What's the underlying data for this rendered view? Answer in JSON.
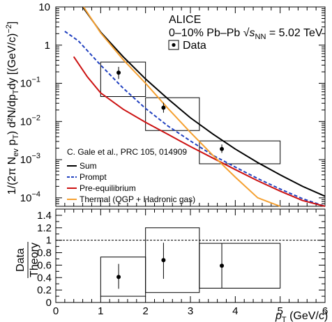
{
  "chart_data": [
    {
      "type": "line",
      "title": "ALICE",
      "subtitle_prefix": "0–10% Pb–Pb ",
      "subtitle_sqrt": "s",
      "subtitle_sub": "NN",
      "subtitle_suffix": " = 5.02 TeV",
      "reference": "C. Gale et al., PRC 105, 014909",
      "xlabel": "p",
      "xlabel_sub": "T",
      "xlabel_unit": " (GeV/c)",
      "ylabel_main": "[(GeV/c)",
      "ylabel_exp": "−2",
      "ylabel_close": "]",
      "xlim": [
        0,
        6
      ],
      "ylim": [
        6e-05,
        10
      ],
      "yscale": "log",
      "x_ticks": [
        0,
        1,
        2,
        3,
        4,
        5,
        6
      ],
      "y_ticks": [
        {
          "value": 10,
          "label": "10",
          "exp": ""
        },
        {
          "value": 1,
          "label": "1",
          "exp": ""
        },
        {
          "value": 0.1,
          "label": "10",
          "exp": "−1"
        },
        {
          "value": 0.01,
          "label": "10",
          "exp": "−2"
        },
        {
          "value": 0.001,
          "label": "10",
          "exp": "−3"
        },
        {
          "value": 0.0001,
          "label": "10",
          "exp": "−4"
        }
      ],
      "legend": {
        "data_label": "Data",
        "placement": "top-right"
      },
      "data_points": [
        {
          "x": 1.4,
          "y": 0.19,
          "xerr": [
            1.0,
            2.0
          ],
          "ylow": 0.13,
          "yhigh": 0.27,
          "syslow": 0.045,
          "syshigh": 0.36
        },
        {
          "x": 2.4,
          "y": 0.023,
          "xerr": [
            2.0,
            3.2
          ],
          "ylow": 0.017,
          "yhigh": 0.031,
          "syslow": 0.0058,
          "syshigh": 0.042
        },
        {
          "x": 3.7,
          "y": 0.0019,
          "xerr": [
            3.2,
            5.0
          ],
          "ylow": 0.0015,
          "yhigh": 0.0025,
          "syslow": 0.00078,
          "syshigh": 0.0031
        }
      ],
      "series": [
        {
          "name": "Sum",
          "color": "#000000",
          "dash": "solid",
          "x": [
            0.6,
            1.0,
            1.5,
            2.0,
            2.5,
            3.0,
            3.5,
            4.0,
            4.5,
            5.0,
            5.5,
            6.0
          ],
          "y": [
            10,
            2.2,
            0.5,
            0.13,
            0.039,
            0.0125,
            0.0047,
            0.0019,
            0.00084,
            0.0004,
            0.0002,
            0.00011
          ]
        },
        {
          "name": "Prompt",
          "color": "#1f3fbf",
          "dash": "dashed",
          "x": [
            0.2,
            0.5,
            1.0,
            1.5,
            2.0,
            2.5,
            3.0,
            3.5,
            4.0,
            4.5,
            5.0,
            5.5,
            6.0
          ],
          "y": [
            2.3,
            1.3,
            0.3,
            0.075,
            0.022,
            0.0076,
            0.0031,
            0.0013,
            0.00064,
            0.00032,
            0.00017,
            9.5e-05,
            5.7e-05
          ]
        },
        {
          "name": "Pre-equilibrium",
          "color": "#cc1111",
          "dash": "solid",
          "x": [
            0.4,
            0.7,
            1.0,
            1.5,
            2.0,
            2.5,
            3.0,
            3.5,
            4.0,
            4.5,
            5.0,
            5.5,
            6.0
          ],
          "y": [
            0.5,
            0.15,
            0.056,
            0.021,
            0.0095,
            0.0046,
            0.0022,
            0.0011,
            0.00055,
            0.00028,
            0.00015,
            8.5e-05,
            5e-05
          ]
        },
        {
          "name": "Thermal (QGP + Hadronic gas)",
          "color": "#f5a030",
          "dash": "solid",
          "x": [
            0.62,
            1.0,
            1.5,
            2.0,
            2.5,
            3.0,
            3.5,
            4.0,
            4.5,
            5.0
          ],
          "y": [
            10,
            2.1,
            0.42,
            0.1,
            0.022,
            0.0052,
            0.0013,
            0.00035,
            0.0001,
            3.2e-05
          ]
        }
      ]
    },
    {
      "type": "scatter",
      "ylabel_num": "Data",
      "ylabel_den": "Theory",
      "xlim": [
        0,
        6
      ],
      "ylim": [
        0,
        1.5
      ],
      "y_ticks": [
        0,
        0.2,
        0.4,
        0.6,
        0.8,
        1,
        1.2,
        1.4
      ],
      "y_tick_labels": [
        "0",
        "0.2",
        "0.4",
        "0.6",
        "0.8",
        "1",
        "1.2",
        "1.4"
      ],
      "reference_line": 1,
      "points": [
        {
          "x": 1.4,
          "y": 0.41,
          "ylow": 0.22,
          "yhigh": 0.62,
          "xerr": [
            1.0,
            2.0
          ],
          "syslow": 0.1,
          "syshigh": 0.73
        },
        {
          "x": 2.4,
          "y": 0.68,
          "ylow": 0.38,
          "yhigh": 0.96,
          "xerr": [
            2.0,
            3.2
          ],
          "syslow": 0.16,
          "syshigh": 1.2
        },
        {
          "x": 3.7,
          "y": 0.59,
          "ylow": 0.23,
          "yhigh": 0.95,
          "xerr": [
            3.2,
            5.0
          ],
          "syslow": 0.23,
          "syshigh": 0.95
        }
      ]
    }
  ]
}
